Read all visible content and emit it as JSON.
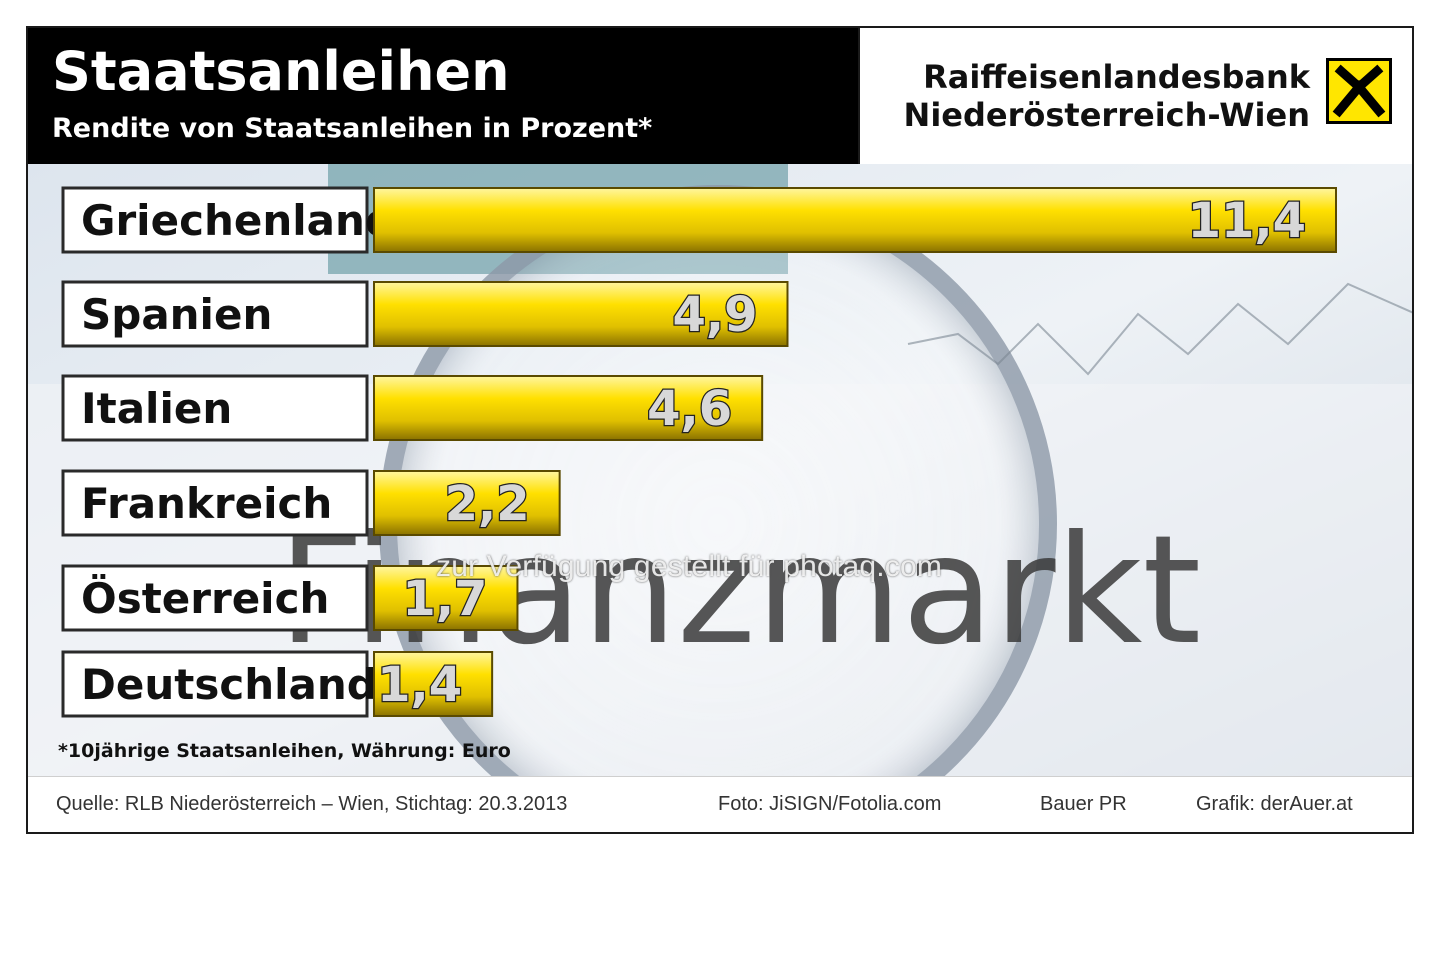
{
  "header": {
    "title": "Staatsanleihen",
    "subtitle": "Rendite von Staatsanleihen in Prozent*",
    "bank_line1": "Raiffeisenlandesbank",
    "bank_line2": "Niederösterreich-Wien"
  },
  "footnote": "*10jährige Staatsanleihen, Währung: Euro",
  "watermark": "zur Verfügung gestellt für photaq.com",
  "background_text": "Finanzmarkt",
  "footer": {
    "source": "Quelle: RLB Niederösterreich – Wien, Stichtag: 20.3.2013",
    "photo": "Foto: JiSIGN/Fotolia.com",
    "agency": "Bauer PR",
    "graphic": "Grafik: derAuer.at"
  },
  "colors": {
    "bar_fill": "#ffe000",
    "bar_dark": "#9a8000",
    "header_bg": "#000000",
    "logo_yellow": "#ffe600"
  },
  "chart_data": {
    "type": "bar",
    "orientation": "horizontal",
    "categories": [
      "Griechenland",
      "Spanien",
      "Italien",
      "Frankreich",
      "Österreich",
      "Deutschland"
    ],
    "values": [
      11.4,
      4.9,
      4.6,
      2.2,
      1.7,
      1.4
    ],
    "value_labels": [
      "11,4",
      "4,9",
      "4,6",
      "2,2",
      "1,7",
      "1,4"
    ],
    "title": "Staatsanleihen",
    "subtitle": "Rendite von Staatsanleihen in Prozent*",
    "xlabel": "",
    "ylabel": "",
    "xlim": [
      0,
      11.4
    ],
    "grid": false,
    "legend": "none"
  }
}
